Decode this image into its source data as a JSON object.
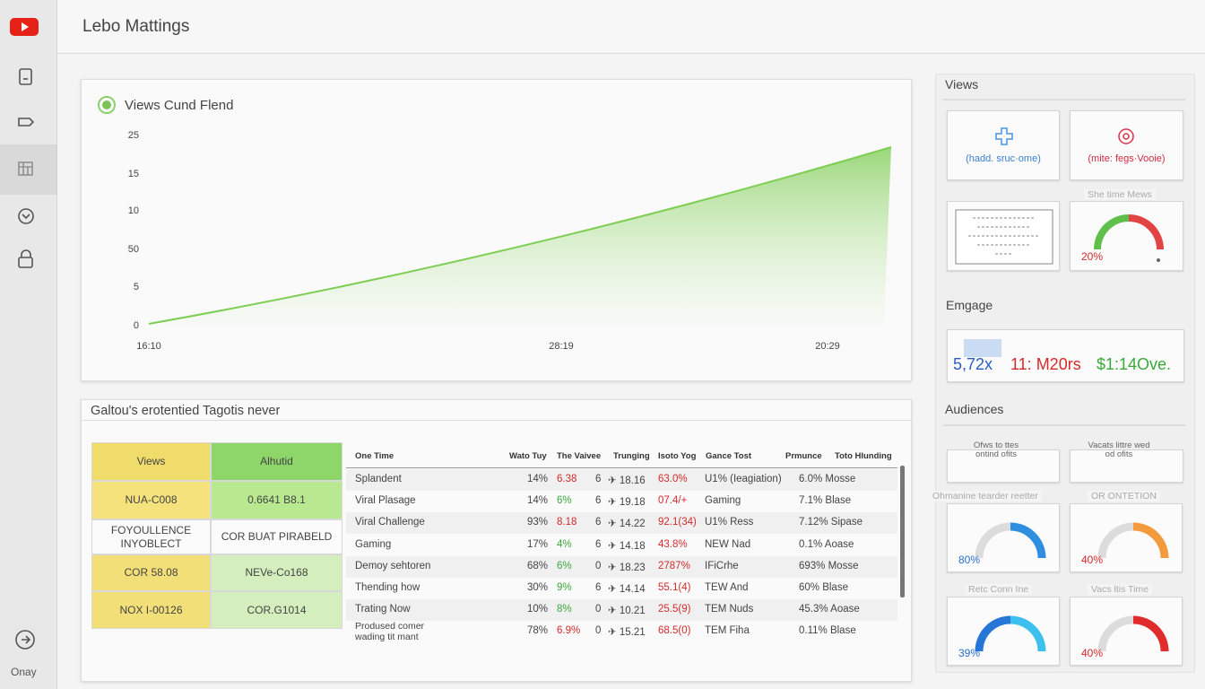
{
  "header": {
    "title": "Lebo Mattings"
  },
  "sidebar": {
    "footer": "Onay"
  },
  "views_chart": {
    "title": "Views Cund Flend",
    "y_labels": [
      "25",
      "15",
      "10",
      "50",
      "5",
      "0"
    ],
    "x_labels": [
      "16:10",
      "28:19",
      "20:29"
    ]
  },
  "tags": {
    "title": "Galtou's erotentied Tagotis never",
    "grid": {
      "headers": [
        "Views",
        "Alhutid"
      ],
      "rows": [
        [
          "NUA-C008",
          "0.6641 B8.1"
        ],
        [
          "FOYOULLENCE INYOBLECT",
          "COR BUAT PIRABELD"
        ],
        [
          "COR 58.08",
          "NEVe-Co168"
        ],
        [
          "NOX I-00126",
          "COR.G1014"
        ]
      ]
    },
    "table": {
      "headers": [
        "One Time",
        "Wato Tuy",
        "The Vaivee",
        "Trunging",
        "Isoto Yog",
        "Gance Tost",
        "Prmunce",
        "Toto Hlunding"
      ],
      "rows": [
        [
          "Splandent",
          "14%",
          "6.38",
          "6",
          "✈ 18.16",
          "63.0%",
          "U1% (Ieagiation)",
          "6.0% Mosse"
        ],
        [
          "Viral Plasage",
          "14%",
          "6%",
          "6",
          "✈ 19.18",
          "07.4/+",
          "Gaming",
          "7.1% Blase"
        ],
        [
          "Viral Challenge",
          "93%",
          "8.18",
          "6",
          "✈ 14.22",
          "92.1(34)",
          "U1% Ress",
          "7.12% Sipase"
        ],
        [
          "Gaming",
          "17%",
          "4%",
          "6",
          "✈ 14.18",
          "43.8%",
          "NEW Nad",
          "0.1% Aoase"
        ],
        [
          "Demoy sehtoren",
          "68%",
          "6%",
          "0",
          "✈ 18.23",
          "2787%",
          "IFiCrhe",
          "693% Mosse"
        ],
        [
          "Thending how",
          "30%",
          "9%",
          "6",
          "✈ 14.14",
          "55.1(4)",
          "TEW And",
          "60% Blase"
        ],
        [
          "Trating Now",
          "10%",
          "8%",
          "0",
          "✈ 10.21",
          "25.5(9)",
          "TEM Nuds",
          "45.3% Aoase"
        ],
        [
          "Prodused comer wading tit mant",
          "78%",
          "6.9%",
          "0",
          "✈ 15.21",
          "68.5(0)",
          "TEM Fiha",
          "0.11% Blase"
        ]
      ],
      "value_colors": [
        "red",
        "green",
        "red",
        "green",
        "green",
        "green",
        "green",
        "red"
      ]
    }
  },
  "panel": {
    "views": {
      "title": "Views",
      "add_card": "(hadd. sruc·ome)",
      "mute_card": "(mite: fegs·Vooie)",
      "gauge_label": "She time Mews",
      "gauge_value": "20%"
    },
    "engage": {
      "title": "Emgage",
      "stats": [
        "5,72x",
        "11: M20rs",
        "$1:14Ove."
      ]
    },
    "audiences": {
      "title": "Audiences",
      "cards": [
        "Ofws to ttes ontind ofits",
        "Vacats littre wed od ofits"
      ],
      "gauges": [
        {
          "label": "Ohmanine tearder reetter",
          "value": "80%"
        },
        {
          "label": "OR ONTETION",
          "value": "40%"
        },
        {
          "label": "Retc Conn Ine",
          "value": "39%"
        },
        {
          "label": "Vacs ltis Time",
          "value": "40%"
        }
      ]
    }
  }
}
